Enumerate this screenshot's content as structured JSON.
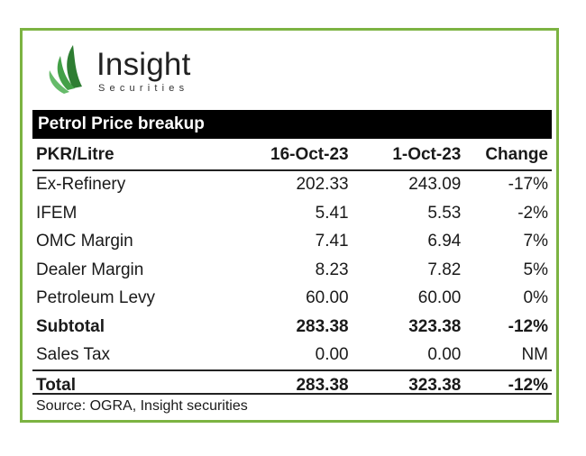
{
  "logo": {
    "brand": "Insight",
    "sub": "Securities",
    "colors": {
      "dark_green": "#2e7d32",
      "light_green": "#66bb6a"
    }
  },
  "table": {
    "title": "Petrol Price breakup",
    "columns": [
      "PKR/Litre",
      "16-Oct-23",
      "1-Oct-23",
      "Change"
    ],
    "rows": [
      {
        "label": "Ex-Refinery",
        "oct16": "202.33",
        "oct1": "243.09",
        "change": "-17%",
        "bold": false
      },
      {
        "label": "IFEM",
        "oct16": "5.41",
        "oct1": "5.53",
        "change": "-2%",
        "bold": false
      },
      {
        "label": "OMC Margin",
        "oct16": "7.41",
        "oct1": "6.94",
        "change": "7%",
        "bold": false
      },
      {
        "label": "Dealer Margin",
        "oct16": "8.23",
        "oct1": "7.82",
        "change": "5%",
        "bold": false
      },
      {
        "label": "Petroleum Levy",
        "oct16": "60.00",
        "oct1": "60.00",
        "change": "0%",
        "bold": false
      },
      {
        "label": "Subtotal",
        "oct16": "283.38",
        "oct1": "323.38",
        "change": "-12%",
        "bold": true
      },
      {
        "label": "Sales Tax",
        "oct16": "0.00",
        "oct1": "0.00",
        "change": "NM",
        "bold": false
      },
      {
        "label": "Total",
        "oct16": "283.38",
        "oct1": "323.38",
        "change": "-12%",
        "bold": true
      }
    ],
    "source": "Source: OGRA, Insight securities"
  }
}
